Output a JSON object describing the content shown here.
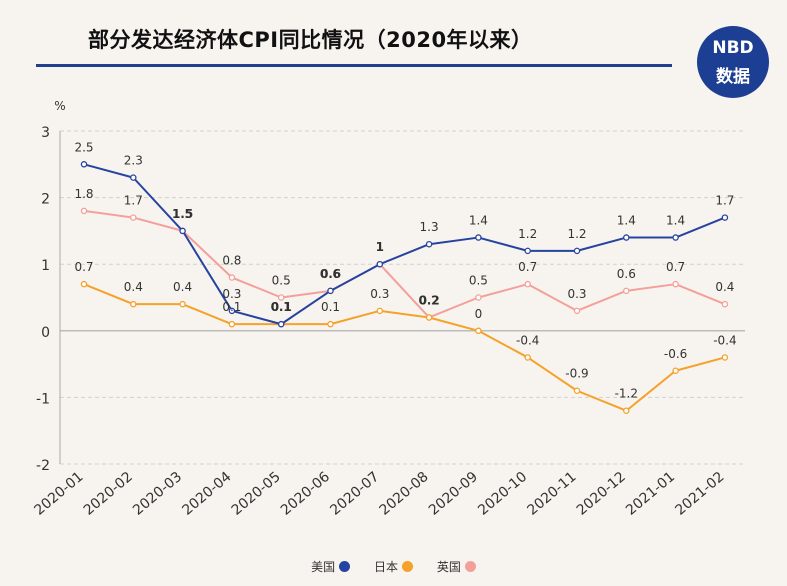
{
  "header": {
    "title": "部分发达经济体CPI同比情况（2020年以来）",
    "logo_top": "NBD",
    "logo_bottom": "数据"
  },
  "chart_data": {
    "type": "line",
    "title": "部分发达经济体CPI同比情况（2020年以来）",
    "ylabel": "%",
    "ylim": [
      -2,
      3
    ],
    "yticks": [
      -2,
      -1,
      0,
      1,
      2,
      3
    ],
    "grid": "horizontal-dashed",
    "legend_position": "bottom-center",
    "categories": [
      "2020-01",
      "2020-02",
      "2020-03",
      "2020-04",
      "2020-05",
      "2020-06",
      "2020-07",
      "2020-08",
      "2020-09",
      "2020-10",
      "2020-11",
      "2020-12",
      "2021-01",
      "2021-02"
    ],
    "series": [
      {
        "name": "美国",
        "color": "#2743a0",
        "values": [
          2.5,
          2.3,
          1.5,
          0.3,
          0.1,
          0.6,
          1,
          1.3,
          1.4,
          1.2,
          1.2,
          1.4,
          1.4,
          1.7
        ],
        "labels": [
          "2.5",
          "2.3",
          "1.5",
          "0.3",
          "0.1",
          "0.6",
          "1",
          "1.3",
          "1.4",
          "1.2",
          "1.2",
          "1.4",
          "1.4",
          "1.7"
        ]
      },
      {
        "name": "日本",
        "color": "#f5a12a",
        "values": [
          0.7,
          0.4,
          0.4,
          0.1,
          0.1,
          0.1,
          0.3,
          0.2,
          0,
          -0.4,
          -0.9,
          -1.2,
          -0.6,
          -0.4
        ],
        "labels": [
          "0.7",
          "0.4",
          "0.4",
          "0.1",
          "0.1",
          "0.1",
          "0.3",
          "0.2",
          "0",
          "-0.4",
          "-0.9",
          "-1.2",
          "-0.6",
          "-0.4"
        ]
      },
      {
        "name": "英国",
        "color": "#f4a09a",
        "values": [
          1.8,
          1.7,
          1.5,
          0.8,
          0.5,
          0.6,
          1,
          0.2,
          0.5,
          0.7,
          0.3,
          0.6,
          0.7,
          0.4
        ],
        "labels": [
          "1.8",
          "1.7",
          "1.5",
          "0.8",
          "0.5",
          "0.6",
          "1",
          "0.2",
          "0.5",
          "0.7",
          "0.3",
          "0.6",
          "0.7",
          "0.4"
        ]
      }
    ]
  },
  "legend": [
    "美国",
    "日本",
    "英国"
  ]
}
